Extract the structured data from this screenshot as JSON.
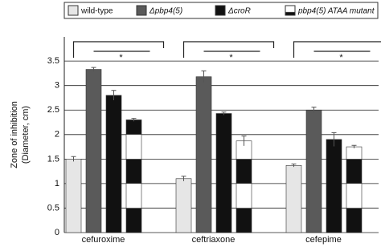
{
  "chart_data": {
    "type": "bar",
    "y_label": [
      "Zone of inhibition",
      "(Diameter, cm)"
    ],
    "categories": [
      "cefuroxime",
      "ceftriaxone",
      "cefepime"
    ],
    "series": [
      {
        "name": "wild-type",
        "color": "#e6e6e6",
        "values": [
          1.5,
          1.1,
          1.37
        ],
        "errors": [
          0.05,
          0.05,
          0.03
        ]
      },
      {
        "name": "Δpbp4(5)",
        "color": "#5a5a5a",
        "values": [
          3.33,
          3.18,
          2.5
        ],
        "errors": [
          0.04,
          0.12,
          0.06
        ]
      },
      {
        "name": "ΔcroR",
        "color": "#111111",
        "values": [
          2.8,
          2.43,
          1.9
        ],
        "errors": [
          0.1,
          0.03,
          0.14
        ]
      },
      {
        "name": "pbp4(5) ATAA mutant",
        "color": "#111111",
        "pattern": "stripes",
        "values": [
          2.3,
          1.87,
          1.75
        ],
        "errors": [
          0.03,
          0.1,
          0.03
        ]
      }
    ],
    "significance": [
      "*",
      "*",
      "*"
    ],
    "ylim": [
      0,
      4
    ],
    "yticks": [
      0,
      0.5,
      1,
      1.5,
      2,
      2.5,
      3,
      3.5
    ],
    "grid": true
  }
}
